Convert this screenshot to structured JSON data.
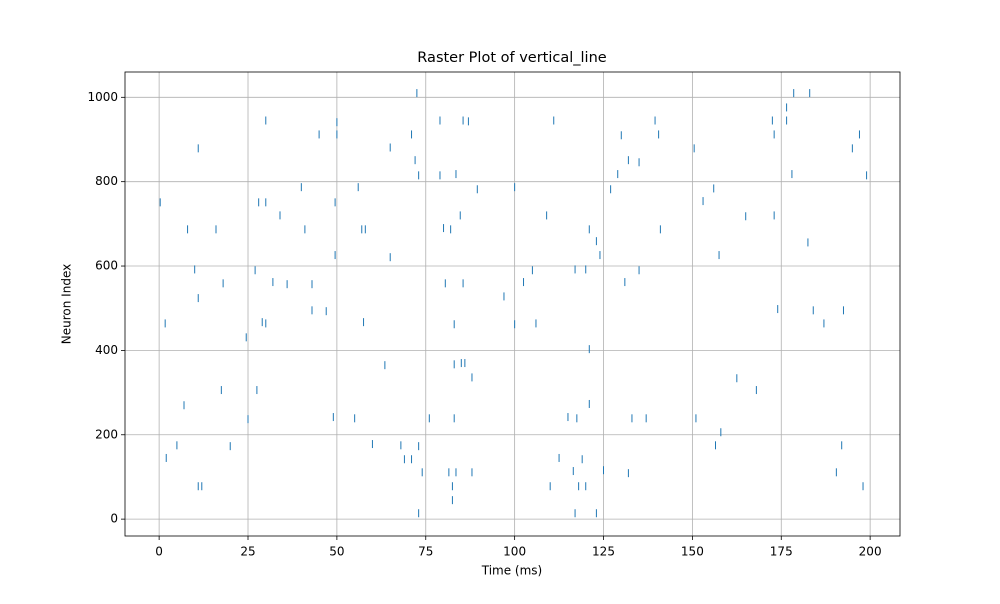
{
  "chart_data": {
    "type": "scatter",
    "title": "Raster Plot of vertical_line",
    "x_label": "Time (ms)",
    "y_label": "Neuron Index",
    "color": "#1f77b4",
    "marker": "|",
    "grid": true,
    "x": [
      0.3,
      1.7,
      2,
      5,
      7,
      8,
      10,
      11,
      11,
      11,
      12,
      16,
      18,
      17.5,
      20,
      24.5,
      25,
      27,
      27.5,
      28,
      29,
      30,
      30,
      30,
      32,
      34,
      36,
      40,
      41,
      43,
      43,
      45,
      47,
      49,
      49.5,
      49.5,
      50,
      50,
      55,
      56,
      57,
      57.5,
      58,
      60,
      63.5,
      65,
      65,
      68,
      69,
      71,
      71,
      72,
      72.5,
      73,
      73,
      74,
      73,
      76,
      79,
      79,
      80,
      80.5,
      81.5,
      82,
      82.5,
      82.5,
      83,
      83,
      83,
      83.5,
      83.5,
      84.7,
      85,
      85.5,
      86,
      85.5,
      87,
      88,
      88,
      89.5,
      97,
      100,
      100,
      102.5,
      105,
      106,
      109,
      110,
      111,
      112.5,
      115,
      116.5,
      117,
      117,
      117.5,
      118,
      119,
      120,
      120,
      121,
      121,
      121,
      123,
      123,
      124,
      125,
      127,
      129,
      130,
      131,
      132,
      132,
      133,
      135,
      135,
      137,
      139.5,
      140.5,
      141,
      150.5,
      151,
      153,
      156,
      156.5,
      157.5,
      158,
      165,
      162.5,
      168,
      172.5,
      173,
      173,
      174,
      176.5,
      176.5,
      178,
      178.5,
      182.5,
      183,
      184,
      187,
      190.5,
      192,
      192.5,
      195,
      197,
      198,
      199
    ],
    "values": [
      751,
      464,
      145,
      175,
      270,
      687,
      592,
      879,
      524,
      78,
      78,
      687,
      559,
      306,
      173,
      431,
      237,
      590,
      306,
      751,
      467,
      751,
      464,
      945,
      562,
      720,
      557,
      787,
      687,
      557,
      495,
      912,
      493,
      242,
      751,
      626,
      941,
      912,
      239,
      787,
      687,
      467,
      687,
      178,
      365,
      881,
      621,
      175,
      142,
      142,
      912,
      851,
      1010,
      173,
      815,
      111,
      14,
      239,
      815,
      945,
      690,
      559,
      111,
      687,
      78,
      45,
      462,
      239,
      367,
      111,
      818,
      720,
      370,
      559,
      370,
      945,
      943,
      336,
      111,
      782,
      528,
      787,
      462,
      562,
      590,
      464,
      720,
      78,
      945,
      145,
      242,
      114,
      14,
      592,
      239,
      78,
      142,
      78,
      592,
      403,
      273,
      687,
      14,
      659,
      626,
      116,
      782,
      818,
      910,
      562,
      109,
      851,
      239,
      590,
      846,
      239,
      945,
      912,
      687,
      879,
      239,
      754,
      784,
      175,
      626,
      206,
      718,
      334,
      306,
      945,
      720,
      912,
      498,
      945,
      976,
      818,
      1010,
      656,
      1010,
      495,
      464,
      111,
      175,
      495,
      879,
      912,
      78,
      815
    ],
    "xlim": [
      -9.6,
      208.4
    ],
    "ylim": [
      -40,
      1060
    ],
    "xticks": [
      0,
      25,
      50,
      75,
      100,
      125,
      150,
      175,
      200
    ],
    "yticks": [
      0,
      200,
      400,
      600,
      800,
      1000
    ]
  }
}
